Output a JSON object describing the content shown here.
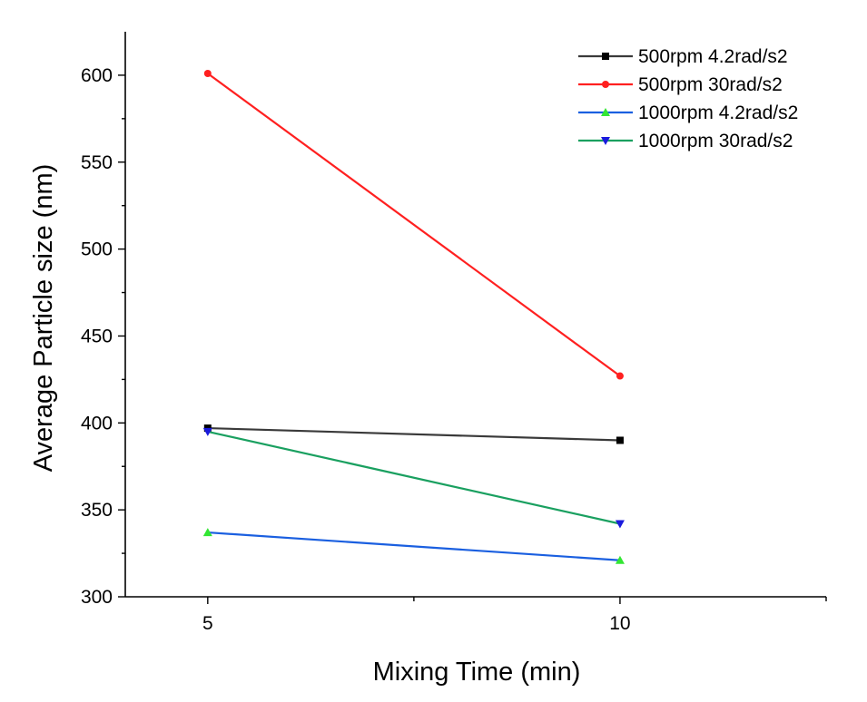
{
  "chart_data": {
    "type": "line",
    "title": "",
    "xlabel": "Mixing Time (min)",
    "ylabel": "Average Particle size (nm)",
    "x": [
      5,
      10
    ],
    "xlim": [
      4,
      12.5
    ],
    "ylim": [
      300,
      625
    ],
    "xticks": [
      5,
      10
    ],
    "xminor": [
      7.5,
      12.5
    ],
    "yticks": [
      300,
      350,
      400,
      450,
      500,
      550,
      600
    ],
    "grid": false,
    "legend_position": "top-right",
    "series": [
      {
        "name": "500rpm 4.2rad/s2",
        "values": [
          397,
          390
        ],
        "line_color": "#3a3a3a",
        "marker_color": "#000000",
        "marker": "square"
      },
      {
        "name": "500rpm 30rad/s2",
        "values": [
          601,
          427
        ],
        "line_color": "#ff2020",
        "marker_color": "#ff2020",
        "marker": "circle"
      },
      {
        "name": "1000rpm 4.2rad/s2",
        "values": [
          337,
          321
        ],
        "line_color": "#1a5fe0",
        "marker_color": "#33e633",
        "marker": "triangle-up"
      },
      {
        "name": "1000rpm 30rad/s2",
        "values": [
          395,
          342
        ],
        "line_color": "#1aa060",
        "marker_color": "#1a1add",
        "marker": "triangle-down"
      }
    ]
  }
}
